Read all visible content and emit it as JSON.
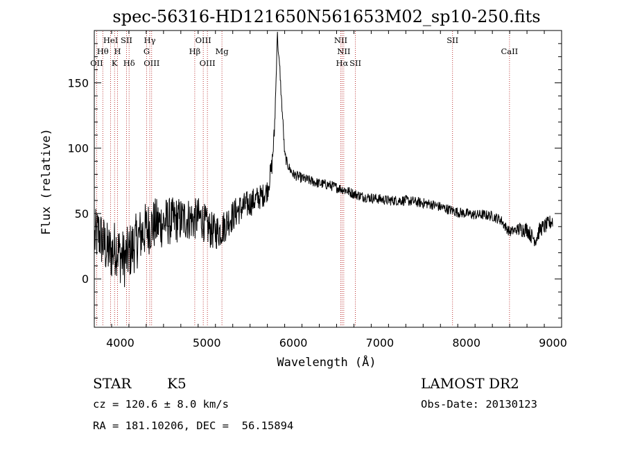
{
  "chart_data": {
    "type": "line",
    "title": "spec-56316-HD121650N561653M02_sp10-250.fits",
    "xlabel": "Wavelength (Å)",
    "ylabel": "Flux (relative)",
    "xlim": [
      3700,
      9100
    ],
    "ylim": [
      -37,
      190
    ],
    "xticks": [
      4000,
      5000,
      6000,
      7000,
      8000,
      9000
    ],
    "yticks": [
      0,
      50,
      100,
      150
    ],
    "grid": false,
    "line_color": "#000000",
    "marker_color": "#aa0000",
    "spectrum_anchors": [
      [
        3700,
        30
      ],
      [
        3750,
        35
      ],
      [
        3800,
        28
      ],
      [
        3850,
        22
      ],
      [
        3900,
        20
      ],
      [
        3950,
        25
      ],
      [
        4000,
        18
      ],
      [
        4050,
        15
      ],
      [
        4100,
        20
      ],
      [
        4150,
        25
      ],
      [
        4200,
        30
      ],
      [
        4250,
        35
      ],
      [
        4300,
        38
      ],
      [
        4350,
        40
      ],
      [
        4400,
        42
      ],
      [
        4450,
        42
      ],
      [
        4500,
        43
      ],
      [
        4550,
        44
      ],
      [
        4600,
        44
      ],
      [
        4650,
        45
      ],
      [
        4700,
        45
      ],
      [
        4750,
        46
      ],
      [
        4800,
        46
      ],
      [
        4850,
        45
      ],
      [
        4900,
        47
      ],
      [
        4950,
        45
      ],
      [
        5000,
        40
      ],
      [
        5050,
        37
      ],
      [
        5100,
        36
      ],
      [
        5150,
        37
      ],
      [
        5200,
        40
      ],
      [
        5250,
        45
      ],
      [
        5300,
        48
      ],
      [
        5350,
        52
      ],
      [
        5400,
        54
      ],
      [
        5450,
        56
      ],
      [
        5500,
        58
      ],
      [
        5550,
        60
      ],
      [
        5600,
        62
      ],
      [
        5650,
        64
      ],
      [
        5700,
        68
      ],
      [
        5750,
        85
      ],
      [
        5780,
        110
      ],
      [
        5800,
        150
      ],
      [
        5815,
        190
      ],
      [
        5830,
        170
      ],
      [
        5845,
        160
      ],
      [
        5860,
        140
      ],
      [
        5880,
        120
      ],
      [
        5900,
        95
      ],
      [
        5930,
        88
      ],
      [
        5960,
        84
      ],
      [
        6000,
        80
      ],
      [
        6100,
        77
      ],
      [
        6200,
        75
      ],
      [
        6300,
        73
      ],
      [
        6400,
        72
      ],
      [
        6500,
        70
      ],
      [
        6600,
        68
      ],
      [
        6700,
        65
      ],
      [
        6800,
        63
      ],
      [
        6900,
        62
      ],
      [
        7000,
        61
      ],
      [
        7100,
        60
      ],
      [
        7200,
        60
      ],
      [
        7300,
        60
      ],
      [
        7400,
        59
      ],
      [
        7500,
        58
      ],
      [
        7600,
        57
      ],
      [
        7700,
        55
      ],
      [
        7800,
        53
      ],
      [
        7900,
        51
      ],
      [
        8000,
        50
      ],
      [
        8100,
        49
      ],
      [
        8200,
        49
      ],
      [
        8300,
        48
      ],
      [
        8400,
        45
      ],
      [
        8450,
        40
      ],
      [
        8500,
        36
      ],
      [
        8600,
        38
      ],
      [
        8700,
        38
      ],
      [
        8750,
        33
      ],
      [
        8800,
        30
      ],
      [
        8850,
        38
      ],
      [
        8900,
        40
      ],
      [
        8950,
        42
      ],
      [
        9000,
        45
      ],
      [
        9100,
        48
      ]
    ],
    "noise_amplitude_blue": 22,
    "noise_amplitude_red": 4,
    "line_markers": [
      {
        "label": "OII",
        "wavelength": 3727,
        "row": 3
      },
      {
        "label": "Hθ",
        "wavelength": 3798,
        "row": 2
      },
      {
        "label": "HeI",
        "wavelength": 3889,
        "row": 1
      },
      {
        "label": "K",
        "wavelength": 3934,
        "row": 3
      },
      {
        "label": "H",
        "wavelength": 3969,
        "row": 2
      },
      {
        "label": "SII",
        "wavelength": 4072,
        "row": 1
      },
      {
        "label": "Hδ",
        "wavelength": 4102,
        "row": 3
      },
      {
        "label": "Hγ",
        "wavelength": 4341,
        "row": 1
      },
      {
        "label": "G",
        "wavelength": 4305,
        "row": 2
      },
      {
        "label": "OIII",
        "wavelength": 4363,
        "row": 3
      },
      {
        "label": "OIII",
        "wavelength": 4959,
        "row": 1
      },
      {
        "label": "Hβ",
        "wavelength": 4861,
        "row": 2
      },
      {
        "label": "OIII",
        "wavelength": 5007,
        "row": 3
      },
      {
        "label": "Mg",
        "wavelength": 5175,
        "row": 2
      },
      {
        "label": "NII",
        "wavelength": 6548,
        "row": 1
      },
      {
        "label": "NII",
        "wavelength": 6583,
        "row": 2
      },
      {
        "label": "Hα",
        "wavelength": 6563,
        "row": 3
      },
      {
        "label": "SII",
        "wavelength": 6717,
        "row": 3
      },
      {
        "label": "SII",
        "wavelength": 7840,
        "row": 1
      },
      {
        "label": "CaII",
        "wavelength": 8498,
        "row": 2
      }
    ]
  },
  "info": {
    "class_label": "STAR",
    "subclass_label": "K5",
    "survey_label": "LAMOST DR2",
    "cz_text": "cz = 120.6 ± 8.0 km/s",
    "obs_date_text": "Obs-Date: 20130123",
    "coords_text": "RA = 181.10206, DEC =  56.15894"
  }
}
